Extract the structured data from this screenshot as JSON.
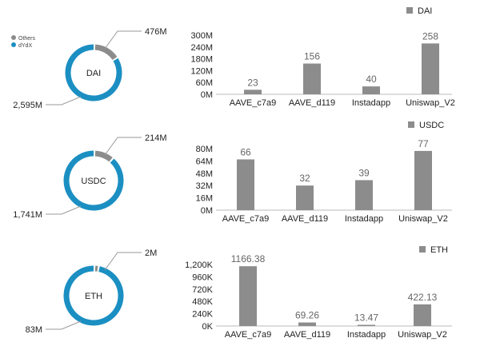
{
  "colors": {
    "bar": "#8c8c8c",
    "ring_main": "#1b8fc2",
    "ring_other": "#8c8c8c",
    "axis": "#444444",
    "grid": "#dddddd"
  },
  "legend": {
    "others": "Others",
    "main": "dYdX"
  },
  "chart_data": [
    {
      "type": "pie",
      "center_label": "DAI",
      "slices": [
        {
          "name": "Others",
          "label": "476M",
          "value": 476
        },
        {
          "name": "dYdX",
          "label": "2,595M",
          "value": 2595
        }
      ]
    },
    {
      "type": "bar",
      "legend": "DAI",
      "categories": [
        "AAVE_c7a9",
        "AAVE_d119",
        "Instadapp",
        "Uniswap_V2"
      ],
      "values": [
        23,
        156,
        40,
        258
      ],
      "value_labels": [
        "23",
        "156",
        "40",
        "258"
      ],
      "ylim": [
        0,
        300
      ],
      "yticks": [
        0,
        60,
        120,
        180,
        240,
        300
      ],
      "ytick_labels": [
        "0M",
        "60M",
        "120M",
        "180M",
        "240M",
        "300M"
      ]
    },
    {
      "type": "pie",
      "center_label": "USDC",
      "slices": [
        {
          "name": "Others",
          "label": "214M",
          "value": 214
        },
        {
          "name": "dYdX",
          "label": "1,741M",
          "value": 1741
        }
      ]
    },
    {
      "type": "bar",
      "legend": "USDC",
      "categories": [
        "AAVE_c7a9",
        "AAVE_d119",
        "Instadapp",
        "Uniswap_V2"
      ],
      "values": [
        66,
        32,
        39,
        77
      ],
      "value_labels": [
        "66",
        "32",
        "39",
        "77"
      ],
      "ylim": [
        0,
        80
      ],
      "yticks": [
        0,
        16,
        32,
        48,
        64,
        80
      ],
      "ytick_labels": [
        "0M",
        "16M",
        "32M",
        "48M",
        "64M",
        "80M"
      ]
    },
    {
      "type": "pie",
      "center_label": "ETH",
      "slices": [
        {
          "name": "Others",
          "label": "2M",
          "value": 2
        },
        {
          "name": "dYdX",
          "label": "83M",
          "value": 83
        }
      ]
    },
    {
      "type": "bar",
      "legend": "ETH",
      "categories": [
        "AAVE_c7a9",
        "AAVE_d119",
        "Instadapp",
        "Uniswap_V2"
      ],
      "values": [
        1166.38,
        69.26,
        13.47,
        422.13
      ],
      "value_labels": [
        "1166.38",
        "69.26",
        "13.47",
        "422.13"
      ],
      "ylim": [
        0,
        1200
      ],
      "yticks": [
        0,
        240,
        480,
        720,
        960,
        1200
      ],
      "ytick_labels": [
        "0K",
        "240K",
        "480K",
        "720K",
        "960K",
        "1,200K"
      ]
    }
  ]
}
